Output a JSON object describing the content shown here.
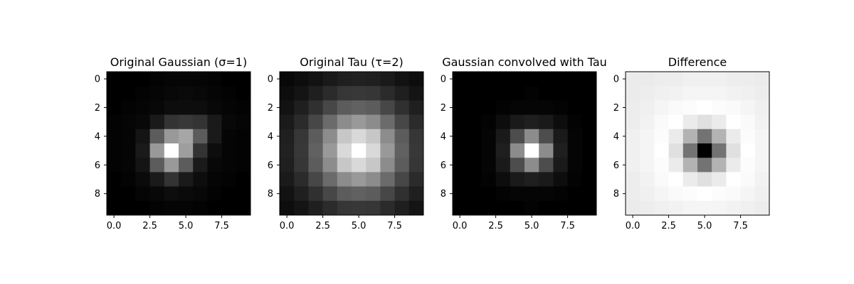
{
  "chart_data": [
    {
      "type": "heatmap",
      "title": "Original Gaussian (σ=1)",
      "cmap": "gray",
      "x_ticks": [
        "0.0",
        "2.5",
        "5.0",
        "7.5"
      ],
      "y_ticks": [
        "0",
        "2",
        "4",
        "6",
        "8"
      ],
      "grid": false,
      "values": [
        [
          0.0,
          0.0,
          0.0,
          0.01,
          0.02,
          0.02,
          0.02,
          0.01,
          0.0,
          0.0
        ],
        [
          0.0,
          0.0,
          0.01,
          0.02,
          0.03,
          0.04,
          0.03,
          0.02,
          0.01,
          0.0
        ],
        [
          0.0,
          0.01,
          0.02,
          0.03,
          0.05,
          0.05,
          0.05,
          0.03,
          0.02,
          0.01
        ],
        [
          0.01,
          0.02,
          0.03,
          0.1,
          0.2,
          0.22,
          0.2,
          0.1,
          0.03,
          0.02
        ],
        [
          0.01,
          0.02,
          0.08,
          0.36,
          0.6,
          0.65,
          0.36,
          0.1,
          0.02,
          0.01
        ],
        [
          0.01,
          0.02,
          0.1,
          0.6,
          1.0,
          0.62,
          0.2,
          0.05,
          0.02,
          0.01
        ],
        [
          0.01,
          0.02,
          0.08,
          0.36,
          0.6,
          0.36,
          0.1,
          0.03,
          0.02,
          0.01
        ],
        [
          0.0,
          0.01,
          0.04,
          0.1,
          0.2,
          0.1,
          0.05,
          0.02,
          0.01,
          0.0
        ],
        [
          0.0,
          0.0,
          0.02,
          0.03,
          0.05,
          0.04,
          0.03,
          0.01,
          0.0,
          0.0
        ],
        [
          0.0,
          0.0,
          0.0,
          0.01,
          0.02,
          0.02,
          0.01,
          0.0,
          0.0,
          0.0
        ]
      ]
    },
    {
      "type": "heatmap",
      "title": "Original Tau (τ=2)",
      "cmap": "gray",
      "x_ticks": [
        "0.0",
        "2.5",
        "5.0",
        "7.5"
      ],
      "y_ticks": [
        "0",
        "2",
        "4",
        "6",
        "8"
      ],
      "grid": false,
      "values": [
        [
          0.03,
          0.05,
          0.07,
          0.1,
          0.12,
          0.13,
          0.12,
          0.1,
          0.07,
          0.05
        ],
        [
          0.05,
          0.08,
          0.12,
          0.17,
          0.21,
          0.22,
          0.21,
          0.17,
          0.12,
          0.08
        ],
        [
          0.07,
          0.12,
          0.19,
          0.28,
          0.36,
          0.38,
          0.36,
          0.28,
          0.19,
          0.12
        ],
        [
          0.1,
          0.17,
          0.28,
          0.42,
          0.55,
          0.6,
          0.55,
          0.42,
          0.28,
          0.17
        ],
        [
          0.12,
          0.21,
          0.36,
          0.55,
          0.78,
          0.85,
          0.78,
          0.55,
          0.36,
          0.21
        ],
        [
          0.13,
          0.22,
          0.38,
          0.6,
          0.85,
          1.0,
          0.85,
          0.6,
          0.38,
          0.22
        ],
        [
          0.12,
          0.21,
          0.36,
          0.55,
          0.78,
          0.85,
          0.78,
          0.55,
          0.36,
          0.21
        ],
        [
          0.1,
          0.17,
          0.28,
          0.42,
          0.55,
          0.6,
          0.55,
          0.42,
          0.28,
          0.17
        ],
        [
          0.07,
          0.12,
          0.19,
          0.28,
          0.36,
          0.38,
          0.36,
          0.28,
          0.19,
          0.12
        ],
        [
          0.05,
          0.08,
          0.12,
          0.17,
          0.21,
          0.22,
          0.21,
          0.17,
          0.12,
          0.08
        ]
      ]
    },
    {
      "type": "heatmap",
      "title": "Gaussian convolved with Tau",
      "cmap": "gray",
      "x_ticks": [
        "0.0",
        "2.5",
        "5.0",
        "7.5"
      ],
      "y_ticks": [
        "0",
        "2",
        "4",
        "6",
        "8"
      ],
      "grid": false,
      "values": [
        [
          0.0,
          0.0,
          0.0,
          0.0,
          0.0,
          0.0,
          0.0,
          0.0,
          0.0,
          0.0
        ],
        [
          0.0,
          0.0,
          0.0,
          0.0,
          0.0,
          0.01,
          0.0,
          0.0,
          0.0,
          0.0
        ],
        [
          0.0,
          0.0,
          0.0,
          0.01,
          0.02,
          0.02,
          0.02,
          0.01,
          0.0,
          0.0
        ],
        [
          0.0,
          0.0,
          0.01,
          0.05,
          0.1,
          0.12,
          0.1,
          0.05,
          0.01,
          0.0
        ],
        [
          0.0,
          0.0,
          0.02,
          0.1,
          0.3,
          0.55,
          0.3,
          0.1,
          0.02,
          0.0
        ],
        [
          0.0,
          0.0,
          0.02,
          0.12,
          0.55,
          1.0,
          0.55,
          0.12,
          0.02,
          0.0
        ],
        [
          0.0,
          0.0,
          0.02,
          0.1,
          0.3,
          0.55,
          0.3,
          0.1,
          0.02,
          0.0
        ],
        [
          0.0,
          0.0,
          0.01,
          0.05,
          0.1,
          0.12,
          0.1,
          0.05,
          0.01,
          0.0
        ],
        [
          0.0,
          0.0,
          0.0,
          0.01,
          0.02,
          0.02,
          0.02,
          0.01,
          0.0,
          0.0
        ],
        [
          0.0,
          0.0,
          0.0,
          0.0,
          0.0,
          0.01,
          0.0,
          0.0,
          0.0,
          0.0
        ]
      ]
    },
    {
      "type": "heatmap",
      "title": "Difference",
      "cmap": "gray",
      "x_ticks": [
        "0.0",
        "2.5",
        "5.0",
        "7.5"
      ],
      "y_ticks": [
        "0",
        "2",
        "4",
        "6",
        "8"
      ],
      "grid": false,
      "values": [
        [
          0.92,
          0.92,
          0.93,
          0.93,
          0.94,
          0.94,
          0.94,
          0.93,
          0.93,
          0.92
        ],
        [
          0.92,
          0.93,
          0.94,
          0.95,
          0.96,
          0.96,
          0.96,
          0.95,
          0.94,
          0.93
        ],
        [
          0.93,
          0.94,
          0.96,
          0.98,
          0.99,
          1.0,
          0.99,
          0.98,
          0.96,
          0.94
        ],
        [
          0.93,
          0.95,
          0.98,
          1.0,
          0.92,
          0.88,
          0.92,
          1.0,
          0.98,
          0.95
        ],
        [
          0.94,
          0.96,
          0.99,
          0.92,
          0.7,
          0.45,
          0.7,
          0.92,
          0.99,
          0.96
        ],
        [
          0.94,
          0.96,
          1.0,
          0.88,
          0.45,
          0.0,
          0.45,
          0.88,
          1.0,
          0.96
        ],
        [
          0.94,
          0.96,
          0.99,
          0.92,
          0.7,
          0.45,
          0.7,
          0.92,
          0.99,
          0.96
        ],
        [
          0.93,
          0.95,
          0.98,
          1.0,
          0.92,
          0.88,
          0.92,
          1.0,
          0.98,
          0.95
        ],
        [
          0.93,
          0.94,
          0.96,
          0.98,
          0.99,
          1.0,
          0.99,
          0.98,
          0.96,
          0.94
        ],
        [
          0.92,
          0.93,
          0.94,
          0.95,
          0.96,
          0.96,
          0.96,
          0.95,
          0.94,
          0.93
        ]
      ]
    }
  ]
}
